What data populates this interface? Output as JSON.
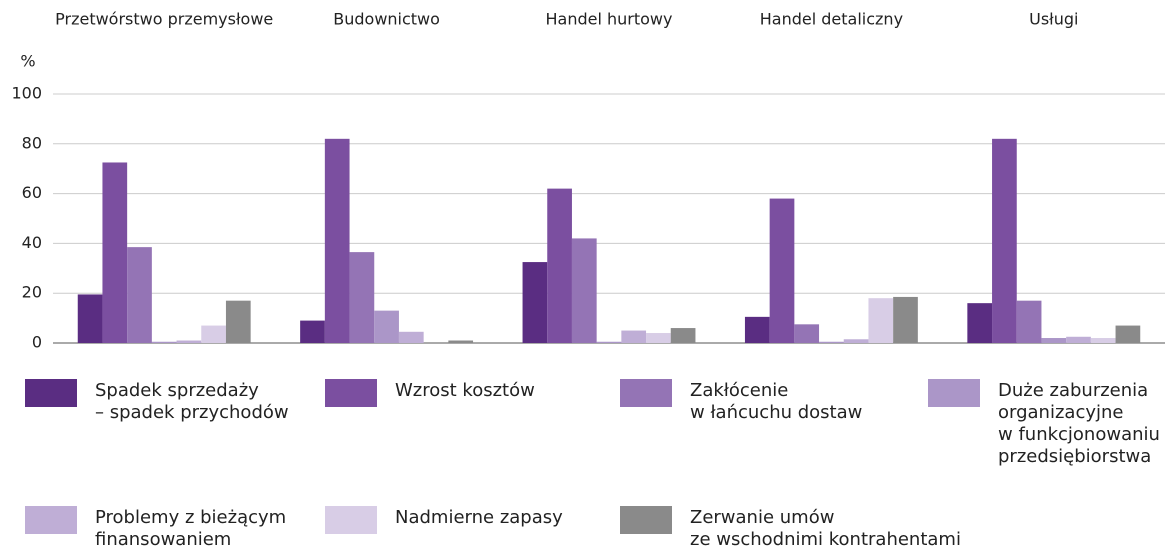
{
  "chart_data": {
    "type": "bar",
    "y_label": "%",
    "categories": [
      "Przetwórstwo przemysłowe",
      "Budownictwo",
      "Handel hurtowy",
      "Handel detaliczny",
      "Usługi"
    ],
    "series": [
      {
        "name": "Spadek sprzedaży\n – spadek przychodów",
        "color": "#5a2d82",
        "values": [
          19.5,
          9,
          32.5,
          10.5,
          16
        ]
      },
      {
        "name": "Wzrost kosztów",
        "color": "#7b4fa0",
        "values": [
          72.5,
          82,
          62,
          58,
          82
        ]
      },
      {
        "name": "Zakłócenie\nw łańcuchu dostaw",
        "color": "#9474b5",
        "values": [
          38.5,
          36.5,
          42,
          7.5,
          17
        ]
      },
      {
        "name": "Duże zaburzenia\norganizacyjne\nw funkcjonowaniu\nprzedsiębiorstwa",
        "color": "#ab96c8",
        "values": [
          0.5,
          13,
          0.5,
          0.5,
          2
        ]
      },
      {
        "name": "Problemy z bieżącym\nfinansowaniem",
        "color": "#bfaed6",
        "values": [
          1,
          4.5,
          5,
          1.5,
          2.5
        ]
      },
      {
        "name": "Nadmierne zapasy",
        "color": "#d8cde6",
        "values": [
          7,
          0,
          4,
          18,
          2
        ]
      },
      {
        "name": "Zerwanie umów\nze wschodnimi kontrahentami",
        "color": "#8a8a8a",
        "values": [
          17,
          1,
          6,
          18.5,
          7
        ]
      }
    ],
    "ylim": [
      0,
      100
    ],
    "yticks": [
      0,
      20,
      40,
      60,
      80,
      100
    ],
    "grid": true
  }
}
